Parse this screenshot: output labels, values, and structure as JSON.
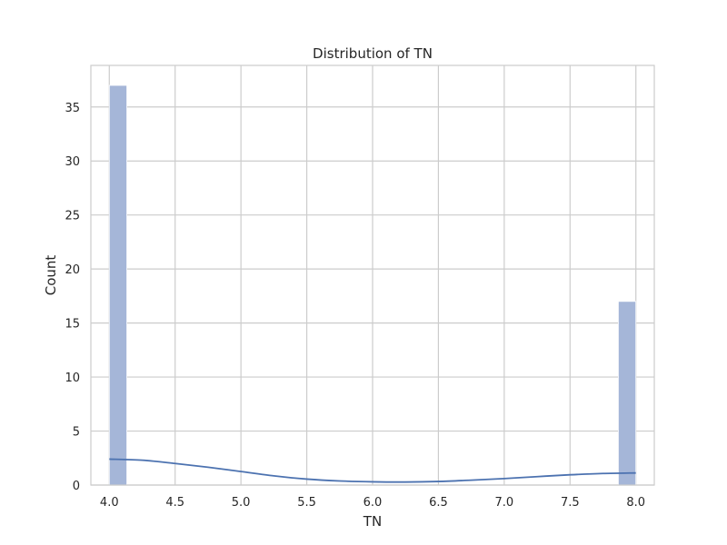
{
  "chart_data": {
    "type": "bar",
    "title": "Distribution of TN",
    "xlabel": "TN",
    "ylabel": "Count",
    "xlim": [
      3.86,
      8.14
    ],
    "ylim": [
      0,
      38.85
    ],
    "x_ticks": [
      4.0,
      4.5,
      5.0,
      5.5,
      6.0,
      6.5,
      7.0,
      7.5,
      8.0
    ],
    "x_tick_labels": [
      "4.0",
      "4.5",
      "5.0",
      "5.5",
      "6.0",
      "6.5",
      "7.0",
      "7.5",
      "8.0"
    ],
    "y_ticks": [
      0,
      5,
      10,
      15,
      20,
      25,
      30,
      35
    ],
    "y_tick_labels": [
      "0",
      "5",
      "10",
      "15",
      "20",
      "25",
      "30",
      "35"
    ],
    "grid": true,
    "bars": [
      {
        "x_start": 4.0,
        "x_end": 4.1333,
        "count": 37
      },
      {
        "x_start": 7.8667,
        "x_end": 8.0,
        "count": 17
      }
    ],
    "kde_curve": {
      "x": [
        4.0,
        4.25,
        4.5,
        4.75,
        5.0,
        5.25,
        5.5,
        5.75,
        6.0,
        6.25,
        6.5,
        6.75,
        7.0,
        7.25,
        7.5,
        7.75,
        8.0
      ],
      "y": [
        2.4,
        2.3,
        2.0,
        1.65,
        1.25,
        0.85,
        0.55,
        0.38,
        0.3,
        0.28,
        0.33,
        0.45,
        0.6,
        0.78,
        0.95,
        1.07,
        1.12
      ]
    },
    "colors": {
      "bar_fill": "#a5b6d8",
      "kde_line": "#4c72b0",
      "grid": "#cccccc",
      "axes_edge": "#cccccc",
      "background": "#ffffff"
    }
  }
}
